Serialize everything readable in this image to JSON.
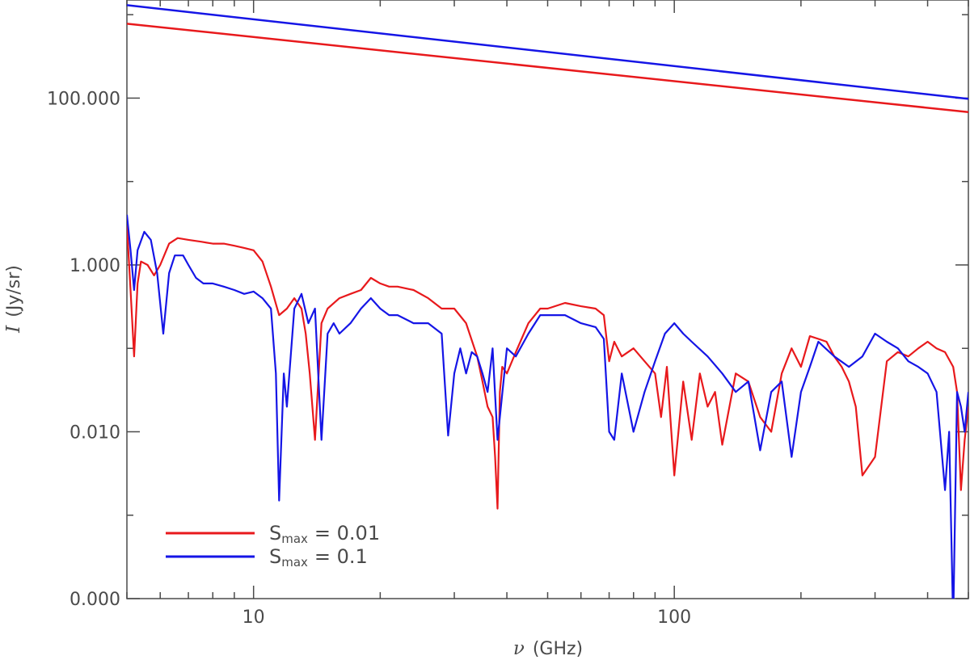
{
  "chart_data": {
    "type": "line",
    "x_scale": "log",
    "y_scale": "log",
    "xlim": [
      5,
      500
    ],
    "ylim": [
      0.0001,
      1500
    ],
    "xlabel_symbol": "ν",
    "xlabel_unit": "(GHz)",
    "ylabel_symbol": "I",
    "ylabel_unit": "(Jy/sr)",
    "x_ticks": [
      {
        "value": 10,
        "label": "10"
      },
      {
        "value": 100,
        "label": "100"
      }
    ],
    "y_ticks": [
      {
        "value": 0.0001,
        "label": "0.000"
      },
      {
        "value": 0.01,
        "label": "0.010"
      },
      {
        "value": 1,
        "label": "1.000"
      },
      {
        "value": 100,
        "label": "100.000"
      }
    ],
    "grid": false,
    "legend_position": "bottom-left",
    "series": [
      {
        "name": "S_max = 0.01",
        "legend_base": "S",
        "legend_sub": "max",
        "legend_rest": "=  0.01",
        "color": "#e8191c",
        "upper_line": {
          "x": [
            5,
            500
          ],
          "y": [
            780,
            68
          ]
        },
        "x": [
          5.0,
          5.1,
          5.2,
          5.3,
          5.4,
          5.6,
          5.8,
          6.0,
          6.3,
          6.6,
          7.0,
          7.5,
          8.0,
          8.5,
          9.0,
          9.5,
          10.0,
          10.5,
          11.0,
          11.5,
          12.0,
          12.5,
          13.0,
          13.3,
          13.6,
          14.0,
          14.5,
          15.0,
          16.0,
          17.0,
          18.0,
          19.0,
          20.0,
          21.0,
          22.0,
          24.0,
          26.0,
          28.0,
          30.0,
          32.0,
          34.0,
          35.0,
          36.0,
          37.0,
          37.5,
          38.0,
          38.5,
          39.0,
          40.0,
          42.0,
          45.0,
          48.0,
          50.0,
          55.0,
          60.0,
          65.0,
          68.0,
          70.0,
          72.0,
          75.0,
          80.0,
          85.0,
          90.0,
          93.0,
          96.0,
          100.0,
          105.0,
          110.0,
          115.0,
          120.0,
          125.0,
          130.0,
          140.0,
          150.0,
          160.0,
          170.0,
          180.0,
          190.0,
          200.0,
          210.0,
          220.0,
          230.0,
          240.0,
          250.0,
          260.0,
          270.0,
          280.0,
          300.0,
          320.0,
          340.0,
          360.0,
          380.0,
          400.0,
          420.0,
          440.0,
          460.0,
          470.0,
          480.0,
          490.0,
          500.0
        ],
        "y": [
          3.0,
          0.5,
          0.08,
          0.6,
          1.1,
          1.0,
          0.75,
          1.0,
          1.8,
          2.1,
          2.0,
          1.9,
          1.8,
          1.8,
          1.7,
          1.6,
          1.5,
          1.1,
          0.55,
          0.25,
          0.3,
          0.4,
          0.3,
          0.15,
          0.05,
          0.008,
          0.2,
          0.3,
          0.4,
          0.45,
          0.5,
          0.7,
          0.6,
          0.55,
          0.55,
          0.5,
          0.4,
          0.3,
          0.3,
          0.2,
          0.08,
          0.04,
          0.02,
          0.015,
          0.005,
          0.0012,
          0.03,
          0.06,
          0.05,
          0.09,
          0.2,
          0.3,
          0.3,
          0.35,
          0.32,
          0.3,
          0.25,
          0.07,
          0.12,
          0.08,
          0.1,
          0.07,
          0.05,
          0.015,
          0.06,
          0.003,
          0.04,
          0.008,
          0.05,
          0.02,
          0.03,
          0.007,
          0.05,
          0.04,
          0.015,
          0.01,
          0.05,
          0.1,
          0.06,
          0.14,
          0.13,
          0.12,
          0.08,
          0.06,
          0.04,
          0.02,
          0.003,
          0.005,
          0.07,
          0.09,
          0.08,
          0.1,
          0.12,
          0.1,
          0.09,
          0.06,
          0.03,
          0.002,
          0.008,
          0.02
        ]
      },
      {
        "name": "S_max = 0.1",
        "legend_base": "S",
        "legend_sub": "max",
        "legend_rest": "=   0.1",
        "color": "#1515e6",
        "upper_line": {
          "x": [
            5,
            500
          ],
          "y": [
            1300,
            98
          ]
        },
        "x": [
          5.0,
          5.1,
          5.2,
          5.3,
          5.5,
          5.7,
          5.9,
          6.1,
          6.3,
          6.5,
          6.8,
          7.0,
          7.3,
          7.6,
          8.0,
          8.5,
          9.0,
          9.5,
          10.0,
          10.5,
          11.0,
          11.3,
          11.5,
          11.8,
          12.0,
          12.5,
          13.0,
          13.5,
          14.0,
          14.5,
          15.0,
          15.5,
          16.0,
          17.0,
          18.0,
          19.0,
          20.0,
          21.0,
          22.0,
          24.0,
          26.0,
          28.0,
          29.0,
          30.0,
          31.0,
          32.0,
          33.0,
          34.0,
          35.0,
          36.0,
          37.0,
          38.0,
          40.0,
          42.0,
          45.0,
          48.0,
          50.0,
          55.0,
          60.0,
          65.0,
          68.0,
          70.0,
          72.0,
          75.0,
          80.0,
          85.0,
          90.0,
          95.0,
          100.0,
          105.0,
          110.0,
          120.0,
          130.0,
          140.0,
          150.0,
          160.0,
          170.0,
          180.0,
          190.0,
          200.0,
          210.0,
          220.0,
          240.0,
          260.0,
          280.0,
          300.0,
          320.0,
          340.0,
          360.0,
          380.0,
          400.0,
          420.0,
          440.0,
          450.0,
          460.0,
          470.0,
          480.0,
          490.0,
          500.0
        ],
        "y": [
          4.0,
          1.5,
          0.5,
          1.5,
          2.5,
          2.0,
          0.8,
          0.15,
          0.8,
          1.3,
          1.3,
          1.0,
          0.7,
          0.6,
          0.6,
          0.55,
          0.5,
          0.45,
          0.48,
          0.4,
          0.3,
          0.05,
          0.0015,
          0.05,
          0.02,
          0.3,
          0.45,
          0.2,
          0.3,
          0.008,
          0.15,
          0.2,
          0.15,
          0.2,
          0.3,
          0.4,
          0.3,
          0.25,
          0.25,
          0.2,
          0.2,
          0.15,
          0.009,
          0.05,
          0.1,
          0.05,
          0.09,
          0.08,
          0.05,
          0.03,
          0.1,
          0.008,
          0.1,
          0.08,
          0.15,
          0.25,
          0.25,
          0.25,
          0.2,
          0.18,
          0.13,
          0.01,
          0.008,
          0.05,
          0.01,
          0.03,
          0.07,
          0.15,
          0.2,
          0.15,
          0.12,
          0.08,
          0.05,
          0.03,
          0.04,
          0.006,
          0.03,
          0.04,
          0.005,
          0.03,
          0.06,
          0.12,
          0.08,
          0.06,
          0.08,
          0.15,
          0.12,
          0.1,
          0.07,
          0.06,
          0.05,
          0.03,
          0.002,
          0.01,
          5e-05,
          0.03,
          0.02,
          0.01,
          0.03
        ]
      }
    ]
  }
}
